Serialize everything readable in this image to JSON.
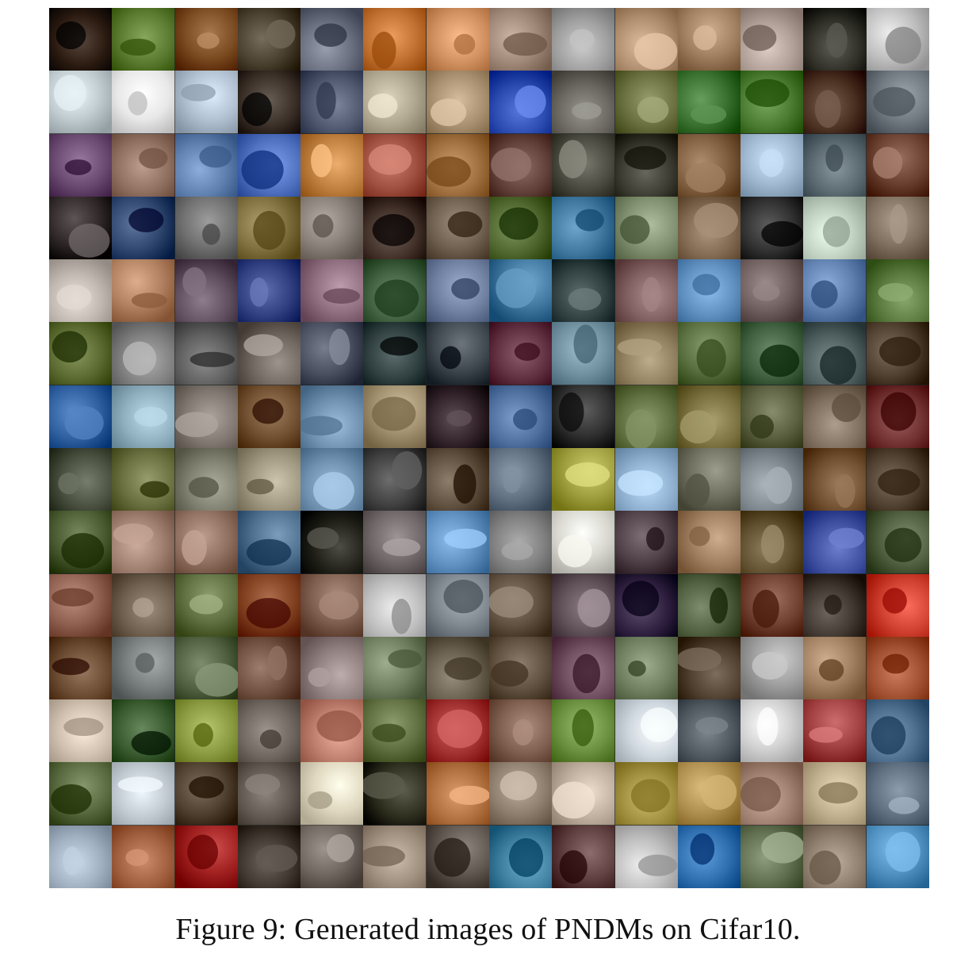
{
  "figure": {
    "caption": "Figure 9: Generated images of PNDMs on Cifar10.",
    "rows": 14,
    "cols": 14,
    "tiles": [
      [
        "#2a1a10",
        "#5a7a30",
        "#7a4a20",
        "#4a4030",
        "#6a7080",
        "#c07030",
        "#d09060",
        "#a08878",
        "#a0a0a0",
        "#b09070",
        "#a08060",
        "#b0a098",
        "#303028",
        "#c0c0c0"
      ],
      [
        "#c0ccd0",
        "#e8e8e8",
        "#b0c0d0",
        "#3a3028",
        "#505870",
        "#b0a890",
        "#a89070",
        "#2a4ab0",
        "#6a6860",
        "#6a7040",
        "#3a7030",
        "#4a7a30",
        "#4a3020",
        "#707880"
      ],
      [
        "#6a4a70",
        "#907060",
        "#6080b0",
        "#5070c0",
        "#c08040",
        "#a05040",
        "#a07040",
        "#604038",
        "#4a4a40",
        "#3a3a30",
        "#806040",
        "#a0b8d0",
        "#5a6870",
        "#6a4030"
      ],
      [
        "#302828",
        "#304870",
        "#707070",
        "#807040",
        "#888078",
        "#403028",
        "#706050",
        "#506830",
        "#4078a0",
        "#809070",
        "#806850",
        "#303030",
        "#c0d0c0",
        "#807060"
      ],
      [
        "#c0b8b0",
        "#b08060",
        "#605060",
        "#304080",
        "#907080",
        "#406040",
        "#7080a0",
        "#4078a0",
        "#304040",
        "#806060",
        "#6090c0",
        "#706060",
        "#6080b0",
        "#5a7a40"
      ],
      [
        "#5a6a30",
        "#808080",
        "#606060",
        "#706860",
        "#4a5060",
        "#304040",
        "#404850",
        "#603040",
        "#7090a0",
        "#908060",
        "#5a7040",
        "#406040",
        "#506060",
        "#504030"
      ],
      [
        "#3060a0",
        "#90b0c0",
        "#807870",
        "#705030",
        "#7090b0",
        "#a09070",
        "#302028",
        "#5070a0",
        "#303030",
        "#607040",
        "#7a7040",
        "#5a6040",
        "#807060",
        "#703030"
      ],
      [
        "#4a5040",
        "#6a7040",
        "#808070",
        "#a09880",
        "#7090b0",
        "#404040",
        "#605040",
        "#607080",
        "#a0a040",
        "#90b0d0",
        "#707060",
        "#808890",
        "#705030",
        "#504030"
      ],
      [
        "#4a5a30",
        "#a08070",
        "#907060",
        "#507090",
        "#202018",
        "#706868",
        "#6090c0",
        "#808080",
        "#d8d8d0",
        "#504048",
        "#a08060",
        "#605030",
        "#4050a0",
        "#506040"
      ],
      [
        "#906050",
        "#706050",
        "#607040",
        "#804020",
        "#806050",
        "#c0c0c0",
        "#808890",
        "#605040",
        "#605058",
        "#302040",
        "#506040",
        "#704030",
        "#403830",
        "#d04030"
      ],
      [
        "#6a4a30",
        "#7a8080",
        "#506040",
        "#705040",
        "#908080",
        "#708060",
        "#6a6050",
        "#605040",
        "#705060",
        "#708060",
        "#504030",
        "#a0a0a0",
        "#a08060",
        "#a05030"
      ],
      [
        "#d0c0b0",
        "#3a5a30",
        "#8a9a40",
        "#706860",
        "#c08070",
        "#607040",
        "#a03030",
        "#806050",
        "#6a9040",
        "#d0d8e0",
        "#505860",
        "#d0d0d0",
        "#a04040",
        "#507090"
      ],
      [
        "#5a6a40",
        "#c0c8d0",
        "#504030",
        "#605850",
        "#e0d8c0",
        "#303020",
        "#b07040",
        "#908070",
        "#c0b0a0",
        "#a09040",
        "#b09050",
        "#a08070",
        "#c0b090",
        "#607080"
      ],
      [
        "#a0b0c0",
        "#a06040",
        "#a02020",
        "#403830",
        "#706860",
        "#a09080",
        "#605850",
        "#4080a0",
        "#604040",
        "#c0c0c0",
        "#3070b0",
        "#607050",
        "#908070",
        "#5090c0"
      ]
    ]
  }
}
